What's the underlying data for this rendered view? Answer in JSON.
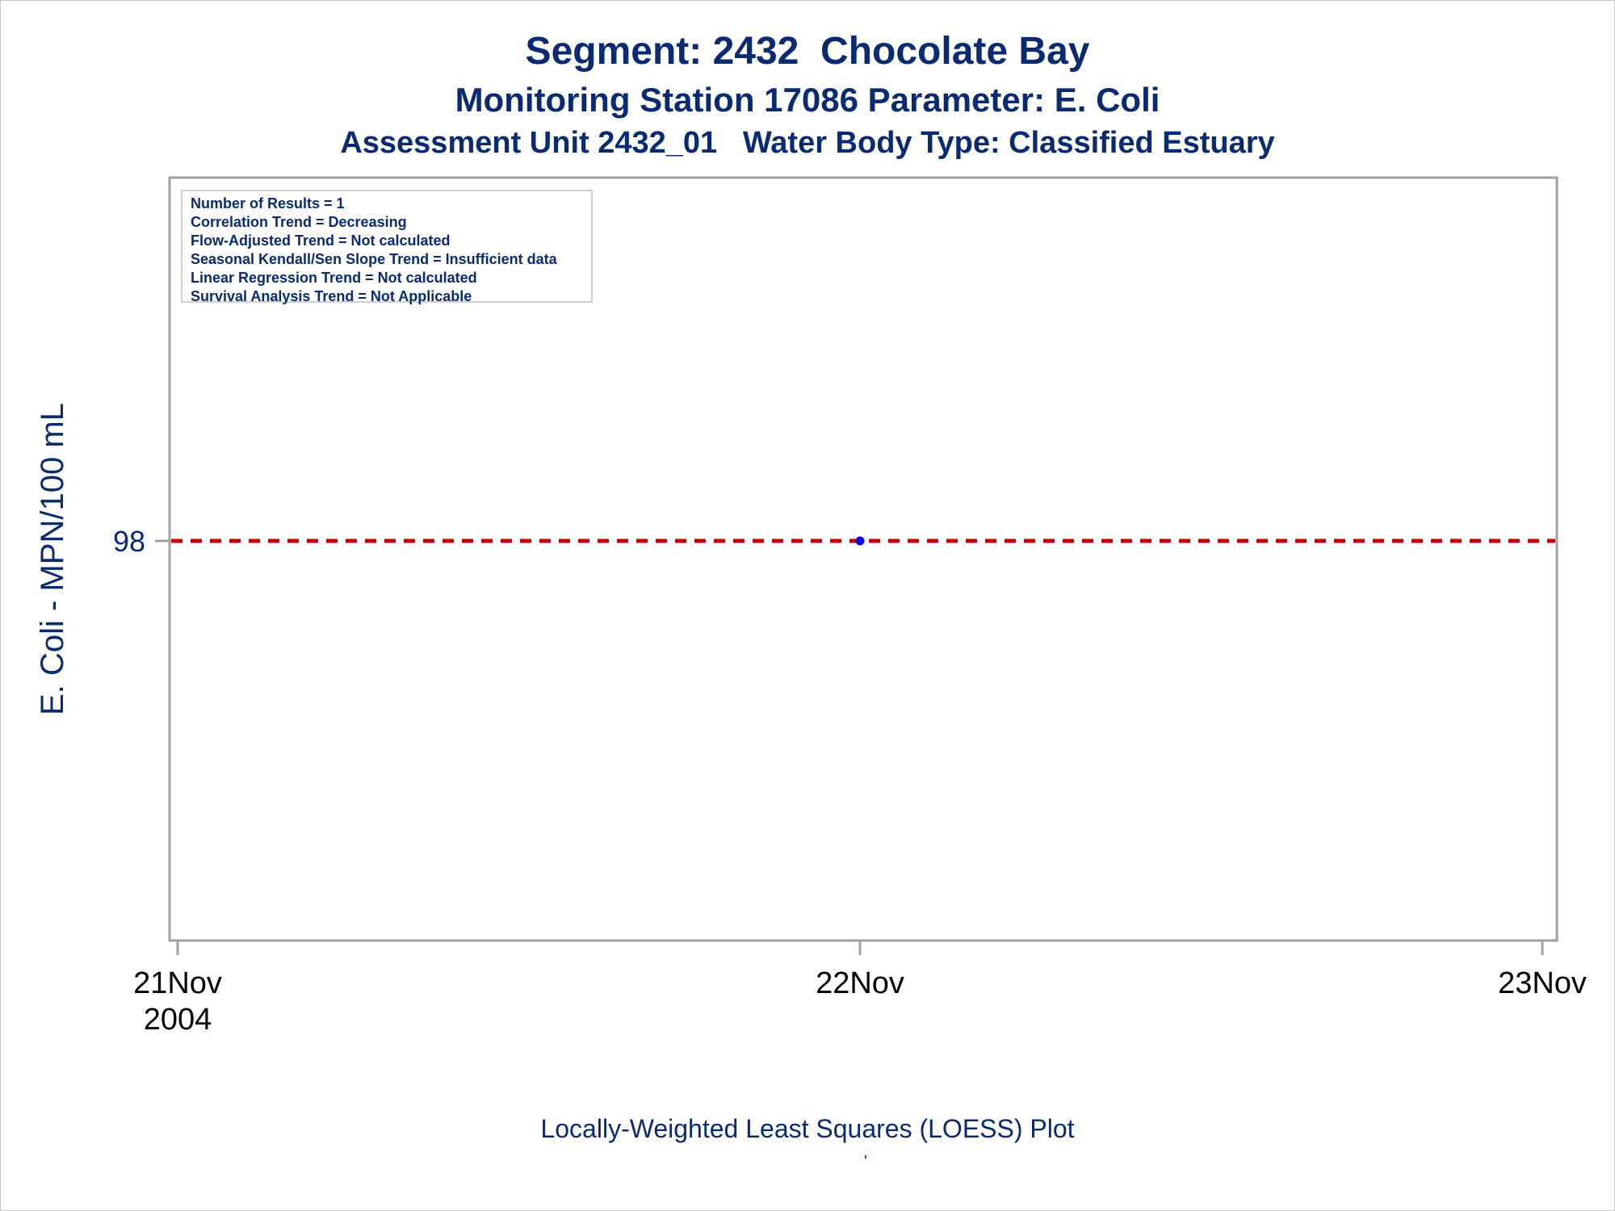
{
  "titles": {
    "line1": "Segment: 2432  Chocolate Bay",
    "line2": "Monitoring Station 17086 Parameter: E. Coli",
    "line3": "Assessment Unit 2432_01   Water Body Type: Classified Estuary"
  },
  "stats": [
    "Number of Results = 1",
    "Correlation Trend = Decreasing",
    "Flow-Adjusted Trend = Not calculated",
    "Seasonal Kendall/Sen Slope Trend = Insufficient data",
    "Linear Regression Trend = Not calculated",
    "Survival Analysis Trend = Not Applicable"
  ],
  "x_caption": "Locally-Weighted Least Squares (LOESS) Plot",
  "x_caption_tick": "'",
  "chart_data": {
    "type": "scatter",
    "ylabel": "E. Coli - MPN/100 mL",
    "x_ticks": [
      {
        "date": "2004-11-21",
        "label": "21Nov",
        "sublabel": "2004"
      },
      {
        "date": "2004-11-22",
        "label": "22Nov",
        "sublabel": ""
      },
      {
        "date": "2004-11-23",
        "label": "23Nov",
        "sublabel": ""
      }
    ],
    "y_ticks": [
      {
        "value": 98,
        "label": "98"
      }
    ],
    "xlim": [
      "2004-11-21",
      "2004-11-23"
    ],
    "ylim": [
      87,
      108
    ],
    "points": [
      {
        "x": "2004-11-22",
        "y": 98
      }
    ],
    "reference_lines": [
      {
        "type": "horizontal",
        "y": 98,
        "style": "dashed",
        "color": "#cc0000"
      }
    ],
    "point_color": "#0000ff",
    "grid": false
  }
}
